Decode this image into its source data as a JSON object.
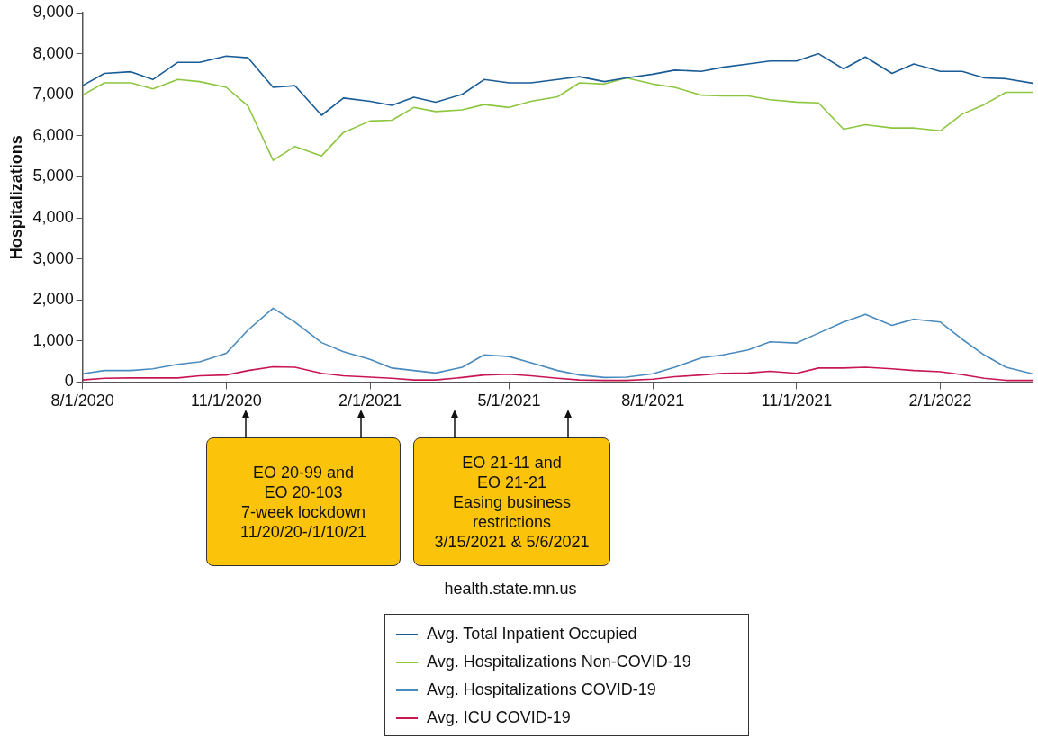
{
  "chart_data": {
    "type": "line",
    "ylabel": "Hospitalizations",
    "x": [
      "2020-08-01",
      "2020-08-15",
      "2020-09-01",
      "2020-09-15",
      "2020-10-01",
      "2020-10-15",
      "2020-11-01",
      "2020-11-15",
      "2020-12-01",
      "2020-12-15",
      "2021-01-01",
      "2021-01-15",
      "2021-02-01",
      "2021-02-15",
      "2021-03-01",
      "2021-03-15",
      "2021-04-01",
      "2021-04-15",
      "2021-05-01",
      "2021-05-15",
      "2021-06-01",
      "2021-06-15",
      "2021-07-01",
      "2021-07-15",
      "2021-08-01",
      "2021-08-15",
      "2021-09-01",
      "2021-09-15",
      "2021-10-01",
      "2021-10-15",
      "2021-11-01",
      "2021-11-15",
      "2021-12-01",
      "2021-12-15",
      "2022-01-01",
      "2022-01-15",
      "2022-02-01",
      "2022-02-15",
      "2022-03-01",
      "2022-03-15",
      "2022-04-01"
    ],
    "series": [
      {
        "name": "Avg. Total Inpatient Occupied",
        "color": "#1a5c96",
        "values": [
          7220,
          7520,
          7560,
          7370,
          7790,
          7790,
          7940,
          7900,
          7180,
          7220,
          6500,
          6920,
          6840,
          6740,
          6940,
          6820,
          7010,
          7370,
          7290,
          7290,
          7370,
          7440,
          7320,
          7410,
          7500,
          7600,
          7570,
          7670,
          7750,
          7820,
          7820,
          8000,
          7630,
          7920,
          7520,
          7750,
          7570,
          7570,
          7410,
          7390,
          7280
        ]
      },
      {
        "name": "Avg. Hospitalizations Non-COVID-19",
        "color": "#8dc63f",
        "values": [
          6990,
          7290,
          7290,
          7140,
          7370,
          7320,
          7180,
          6720,
          5400,
          5740,
          5510,
          6080,
          6360,
          6380,
          6690,
          6590,
          6630,
          6760,
          6690,
          6840,
          6950,
          7290,
          7260,
          7410,
          7260,
          7180,
          6990,
          6970,
          6970,
          6880,
          6820,
          6800,
          6160,
          6270,
          6190,
          6190,
          6120,
          6530,
          6760,
          7060,
          7060
        ]
      },
      {
        "name": "Avg. Hospitalizations COVID-19",
        "color": "#4a8bbf",
        "values": [
          200,
          280,
          280,
          320,
          430,
          490,
          700,
          1270,
          1800,
          1460,
          960,
          740,
          550,
          340,
          280,
          220,
          360,
          660,
          620,
          470,
          280,
          170,
          110,
          120,
          200,
          360,
          590,
          660,
          780,
          980,
          950,
          1190,
          1460,
          1650,
          1380,
          1530,
          1460,
          1040,
          660,
          360,
          200
        ]
      },
      {
        "name": "Avg. ICU COVID-19",
        "color": "#c8174f",
        "values": [
          50,
          90,
          100,
          100,
          100,
          150,
          170,
          280,
          370,
          360,
          210,
          150,
          120,
          90,
          50,
          50,
          110,
          170,
          190,
          150,
          90,
          50,
          40,
          40,
          70,
          130,
          170,
          210,
          220,
          260,
          210,
          340,
          340,
          360,
          320,
          280,
          250,
          180,
          90,
          40,
          40
        ]
      }
    ],
    "xlim": [
      "2020-08-01",
      "2022-04-01"
    ],
    "xticks": [
      {
        "value": "2020-08-01",
        "label": "8/1/2020"
      },
      {
        "value": "2020-11-01",
        "label": "11/1/2020"
      },
      {
        "value": "2021-02-01",
        "label": "2/1/2021"
      },
      {
        "value": "2021-05-01",
        "label": "5/1/2021"
      },
      {
        "value": "2021-08-01",
        "label": "8/1/2021"
      },
      {
        "value": "2021-11-01",
        "label": "11/1/2021"
      },
      {
        "value": "2022-02-01",
        "label": "2/1/2022"
      }
    ],
    "ylim": [
      0,
      9000
    ],
    "yticks": [
      0,
      {
        "value": 1000,
        "label": "1,000"
      },
      {
        "value": 2000,
        "label": "2,000"
      },
      {
        "value": 3000,
        "label": "3,000"
      },
      {
        "value": 4000,
        "label": "4,000"
      },
      {
        "value": 5000,
        "label": "5,000"
      },
      {
        "value": 6000,
        "label": "6,000"
      },
      {
        "value": 7000,
        "label": "7,000"
      },
      {
        "value": 8000,
        "label": "8,000"
      },
      {
        "value": 9000,
        "label": "9,000"
      }
    ],
    "grid": false,
    "legend": "bottom",
    "marker": "none",
    "line_style": "solid",
    "annotations": [
      "EO 20-99 and\nEO 20-103\n7-week lockdown\n11/20/20-/1/10/21",
      "EO 21-11 and\nEO 21-21\nEasing business\nrestrictions\n3/15/2021 & 5/6/2021",
      "health.state.mn.us"
    ]
  }
}
